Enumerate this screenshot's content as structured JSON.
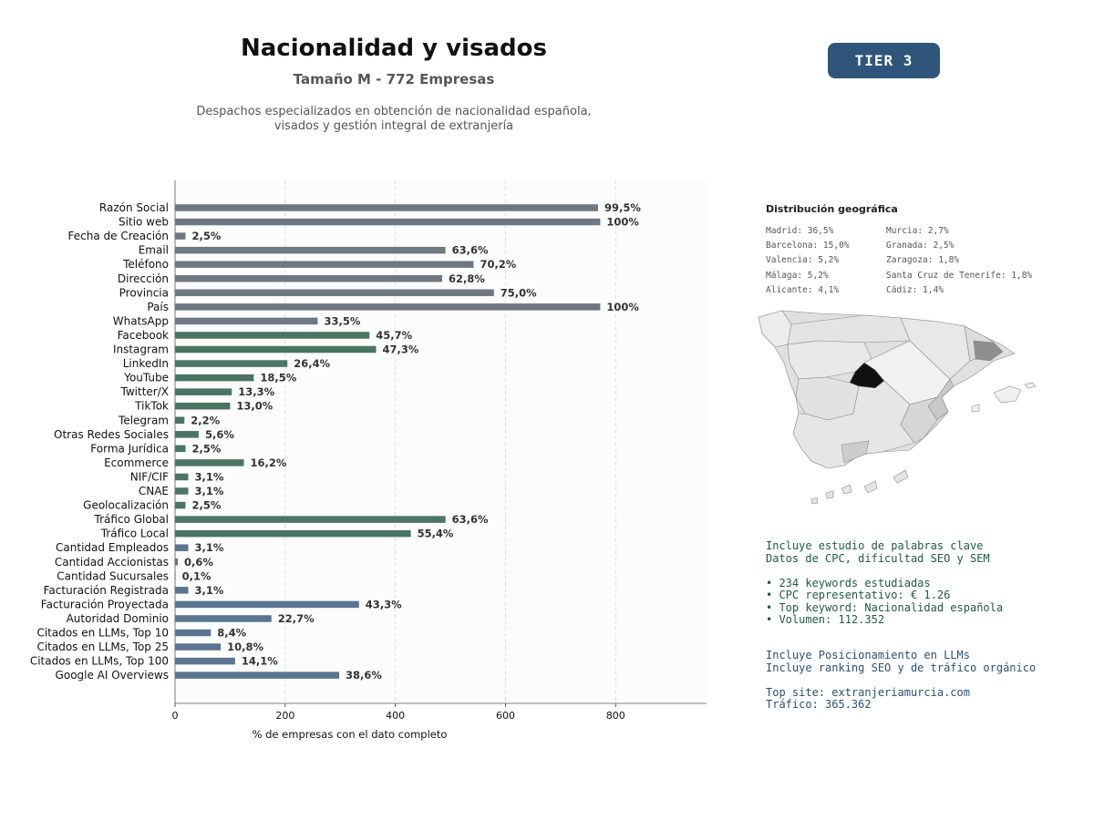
{
  "header": {
    "title": "Nacionalidad y visados",
    "subtitle": "Tamaño M - 772 Empresas",
    "description_line1": "Despachos especializados en obtención de nacionalidad española,",
    "description_line2": "visados y gestión integral de extranjería",
    "tier": "TIER 3"
  },
  "chart_data": {
    "type": "bar",
    "orientation": "horizontal",
    "xlabel": "% de empresas con el dato completo",
    "xlim": [
      0,
      965
    ],
    "xticks": [
      0,
      200,
      400,
      600,
      800
    ],
    "grid": "x dashed",
    "colors": {
      "group1": "#6e7883",
      "group2": "#4a7563",
      "group3": "#5a7590"
    },
    "categories": [
      "Razón Social",
      "Sitio web",
      "Fecha de Creación",
      "Email",
      "Teléfono",
      "Dirección",
      "Provincia",
      "País",
      "WhatsApp",
      "Facebook",
      "Instagram",
      "LinkedIn",
      "YouTube",
      "Twitter/X",
      "TikTok",
      "Telegram",
      "Otras Redes Sociales",
      "Forma Jurídica",
      "Ecommerce",
      "NIF/CIF",
      "CNAE",
      "Geolocalización",
      "Tráfico Global",
      "Tráfico Local",
      "Cantidad Empleados",
      "Cantidad Accionistas",
      "Cantidad Sucursales",
      "Facturación Registrada",
      "Facturación Proyectada",
      "Autoridad Dominio",
      "Citados en LLMs, Top 10",
      "Citados en LLMs, Top 25",
      "Citados en LLMs, Top 100",
      "Google AI Overviews"
    ],
    "values": [
      768,
      772,
      19,
      491,
      542,
      485,
      579,
      772,
      259,
      353,
      365,
      204,
      143,
      103,
      100,
      17,
      43,
      19,
      125,
      24,
      24,
      19,
      491,
      428,
      24,
      5,
      1,
      24,
      334,
      175,
      65,
      83,
      109,
      298
    ],
    "labels": [
      "99,5%",
      "100%",
      "2,5%",
      "63,6%",
      "70,2%",
      "62,8%",
      "75,0%",
      "100%",
      "33,5%",
      "45,7%",
      "47,3%",
      "26,4%",
      "18,5%",
      "13,3%",
      "13,0%",
      "2,2%",
      "5,6%",
      "2,5%",
      "16,2%",
      "3,1%",
      "3,1%",
      "2,5%",
      "63,6%",
      "55,4%",
      "3,1%",
      "0,6%",
      "0,1%",
      "3,1%",
      "43,3%",
      "22,7%",
      "8,4%",
      "10,8%",
      "14,1%",
      "38,6%"
    ],
    "groups": [
      1,
      1,
      1,
      1,
      1,
      1,
      1,
      1,
      1,
      2,
      2,
      2,
      2,
      2,
      2,
      2,
      2,
      2,
      2,
      2,
      2,
      2,
      2,
      2,
      3,
      3,
      3,
      3,
      3,
      3,
      3,
      3,
      3,
      3
    ]
  },
  "geo": {
    "title": "Distribución geográfica",
    "col1": [
      "Madrid: 36,5%",
      "Barcelona: 15,0%",
      "Valencia: 5,2%",
      "Málaga: 5,2%",
      "Alicante: 4,1%"
    ],
    "col2": [
      "Murcia: 2,7%",
      "Granada: 2,5%",
      "Zaragoza: 1,8%",
      "Santa Cruz de Tenerife: 1,8%",
      "Cádiz: 1,4%"
    ]
  },
  "keywords": {
    "line1": "Incluye estudio de palabras clave",
    "line2": "Datos de CPC, dificultad SEO y SEM",
    "bullet1": "• 234 keywords estudiadas",
    "bullet2": "• CPC representativo: € 1.26",
    "bullet3": "• Top keyword: Nacionalidad española",
    "bullet4": "• Volumen: 112.352"
  },
  "seo": {
    "line1": "Incluye Posicionamiento en LLMs",
    "line2": "Incluye ranking SEO y de tráfico orgánico",
    "top_site": "Top site: extranjeriamurcia.com",
    "traffic": "Tráfico: 365.362"
  }
}
